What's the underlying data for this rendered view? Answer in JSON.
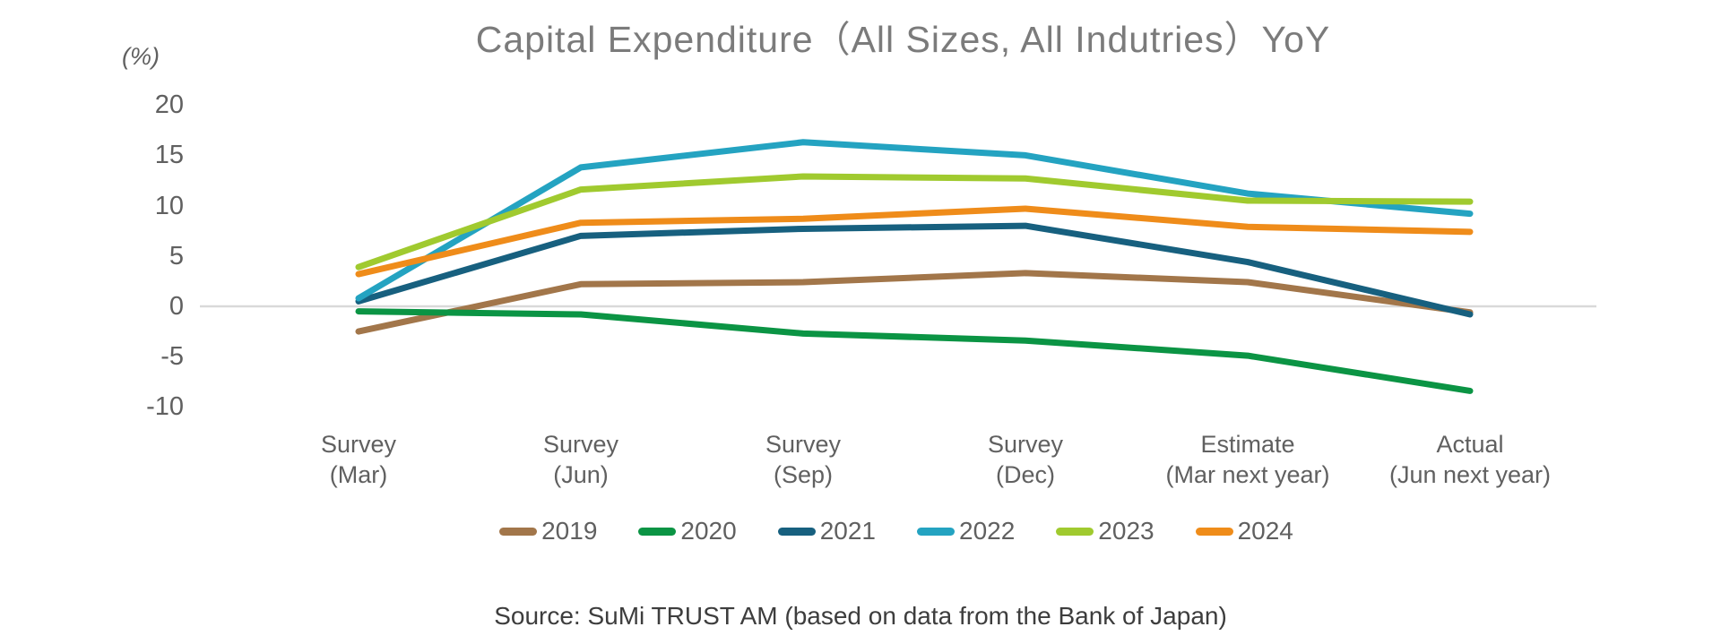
{
  "chart": {
    "title": "Capital Expenditure（All Sizes, All Indutries）YoY",
    "unit_label": "(%)",
    "source": "Source: SuMi TRUST AM (based on data from the Bank of Japan)"
  },
  "chart_data": {
    "type": "line",
    "title": "Capital Expenditure（All Sizes, All Indutries）YoY",
    "xlabel": "",
    "ylabel": "(%)",
    "ylim": [
      -10,
      20
    ],
    "y_ticks": [
      20,
      15,
      10,
      5,
      0,
      -5,
      -10
    ],
    "grid": "zero-line-only",
    "zero_line_color": "#d9d9d9",
    "legend_position": "bottom",
    "categories": [
      "Survey (Mar)",
      "Survey (Jun)",
      "Survey (Sep)",
      "Survey (Dec)",
      "Estimate (Mar next year)",
      "Actual (Jun next year)"
    ],
    "category_lines": [
      [
        "Survey",
        "(Mar)"
      ],
      [
        "Survey",
        "(Jun)"
      ],
      [
        "Survey",
        "(Sep)"
      ],
      [
        "Survey",
        "(Dec)"
      ],
      [
        "Estimate",
        "(Mar next year)"
      ],
      [
        "Actual",
        "(Jun next year)"
      ]
    ],
    "series": [
      {
        "name": "2019",
        "color": "#a2764a",
        "values": [
          -2.5,
          2.2,
          2.4,
          3.3,
          2.4,
          -0.6
        ]
      },
      {
        "name": "2020",
        "color": "#0b9444",
        "values": [
          -0.5,
          -0.8,
          -2.7,
          -3.4,
          -4.9,
          -8.4
        ]
      },
      {
        "name": "2021",
        "color": "#17607f",
        "values": [
          0.5,
          7.0,
          7.7,
          8.0,
          4.4,
          -0.8
        ]
      },
      {
        "name": "2022",
        "color": "#24a3c1",
        "values": [
          0.8,
          13.8,
          16.3,
          15.0,
          11.2,
          9.2
        ]
      },
      {
        "name": "2023",
        "color": "#a0ca2f",
        "values": [
          3.9,
          11.6,
          12.9,
          12.7,
          10.5,
          10.4
        ]
      },
      {
        "name": "2024",
        "color": "#ef8c1a",
        "values": [
          3.2,
          8.3,
          8.7,
          9.7,
          7.9,
          7.4
        ]
      }
    ]
  }
}
